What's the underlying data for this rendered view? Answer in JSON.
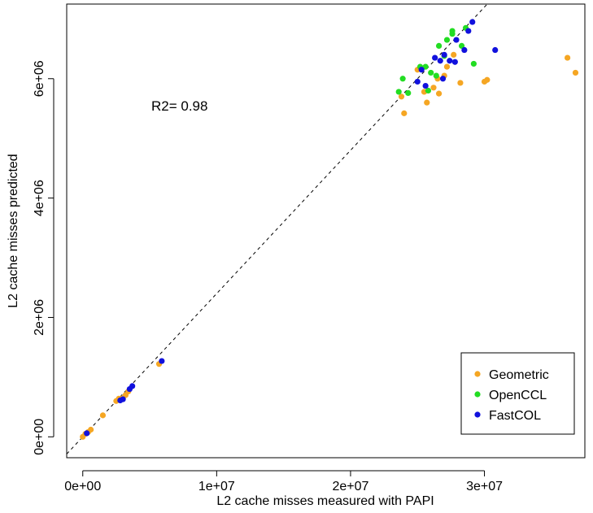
{
  "chart_data": {
    "type": "scatter",
    "title": "",
    "xlabel": "L2 cache misses measured with PAPI",
    "ylabel": "L2 cache misses predicted",
    "xlim": [
      -1200000,
      37500000
    ],
    "ylim": [
      -350000,
      7250000
    ],
    "x_ticks": [
      {
        "value": 0,
        "label": "0e+00"
      },
      {
        "value": 10000000,
        "label": "1e+07"
      },
      {
        "value": 20000000,
        "label": "2e+07"
      },
      {
        "value": 30000000,
        "label": "3e+07"
      }
    ],
    "y_ticks": [
      {
        "value": 0,
        "label": "0e+00"
      },
      {
        "value": 2000000,
        "label": "2e+06"
      },
      {
        "value": 4000000,
        "label": "4e+06"
      },
      {
        "value": 6000000,
        "label": "6e+06"
      }
    ],
    "annotation": "R2= 0.98",
    "reference_line": {
      "style": "dashed",
      "slope": 0.24,
      "intercept": 0
    },
    "legend": {
      "position": "bottom-right"
    },
    "grid": false,
    "series": [
      {
        "name": "Geometric",
        "color": "#F5A623",
        "points": [
          [
            0,
            0
          ],
          [
            200000,
            50000
          ],
          [
            400000,
            80000
          ],
          [
            600000,
            120000
          ],
          [
            1500000,
            360000
          ],
          [
            2500000,
            600000
          ],
          [
            2700000,
            640000
          ],
          [
            3000000,
            650000
          ],
          [
            3200000,
            700000
          ],
          [
            3400000,
            760000
          ],
          [
            5700000,
            1220000
          ],
          [
            23800000,
            5700000
          ],
          [
            24000000,
            5420000
          ],
          [
            25000000,
            6150000
          ],
          [
            25500000,
            5780000
          ],
          [
            25700000,
            5600000
          ],
          [
            26200000,
            5850000
          ],
          [
            26500000,
            6000000
          ],
          [
            26600000,
            5750000
          ],
          [
            27000000,
            6050000
          ],
          [
            27200000,
            6200000
          ],
          [
            27700000,
            6400000
          ],
          [
            28200000,
            5930000
          ],
          [
            30000000,
            5950000
          ],
          [
            30200000,
            5980000
          ],
          [
            36200000,
            6350000
          ],
          [
            36800000,
            6100000
          ]
        ]
      },
      {
        "name": "OpenCCL",
        "color": "#22DD22",
        "points": [
          [
            23600000,
            5780000
          ],
          [
            23900000,
            6000000
          ],
          [
            24300000,
            5760000
          ],
          [
            25200000,
            6200000
          ],
          [
            25600000,
            6200000
          ],
          [
            25800000,
            5800000
          ],
          [
            26000000,
            6100000
          ],
          [
            26400000,
            6050000
          ],
          [
            26600000,
            6550000
          ],
          [
            27000000,
            6380000
          ],
          [
            27200000,
            6650000
          ],
          [
            27600000,
            6800000
          ],
          [
            27600000,
            6750000
          ],
          [
            28300000,
            6550000
          ],
          [
            28600000,
            6850000
          ],
          [
            29200000,
            6250000
          ]
        ]
      },
      {
        "name": "FastCOL",
        "color": "#1111DD",
        "points": [
          [
            300000,
            60000
          ],
          [
            2800000,
            610000
          ],
          [
            3000000,
            630000
          ],
          [
            3500000,
            800000
          ],
          [
            3700000,
            850000
          ],
          [
            5900000,
            1270000
          ],
          [
            25000000,
            5950000
          ],
          [
            25300000,
            6150000
          ],
          [
            25600000,
            5880000
          ],
          [
            26300000,
            6350000
          ],
          [
            26700000,
            6300000
          ],
          [
            26900000,
            6000000
          ],
          [
            27000000,
            6400000
          ],
          [
            27400000,
            6300000
          ],
          [
            27800000,
            6280000
          ],
          [
            27900000,
            6650000
          ],
          [
            28500000,
            6480000
          ],
          [
            28800000,
            6800000
          ],
          [
            29100000,
            6950000
          ],
          [
            30800000,
            6480000
          ]
        ]
      }
    ]
  }
}
